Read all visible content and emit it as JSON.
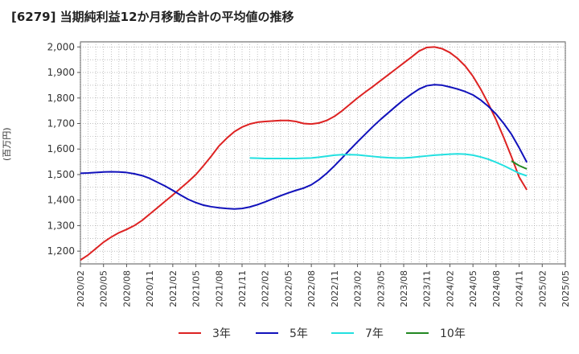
{
  "chart_data": {
    "type": "line",
    "title": "[6279]  当期純利益12か月移動合計の平均値の推移",
    "ylabel": "(百万円)",
    "xlabel": "",
    "ylim": [
      1150,
      2020
    ],
    "yticks": [
      1200,
      1300,
      1400,
      1500,
      1600,
      1700,
      1800,
      1900,
      2000
    ],
    "ytick_labels": [
      "1,200",
      "1,300",
      "1,400",
      "1,500",
      "1,600",
      "1,700",
      "1,800",
      "1,900",
      "2,000"
    ],
    "xticks": [
      "2020/02",
      "2020/05",
      "2020/08",
      "2020/11",
      "2021/02",
      "2021/05",
      "2021/08",
      "2021/11",
      "2022/02",
      "2022/05",
      "2022/08",
      "2022/11",
      "2023/02",
      "2023/05",
      "2023/08",
      "2023/11",
      "2024/02",
      "2024/05",
      "2024/08",
      "2024/11",
      "2025/02",
      "2025/05"
    ],
    "grid": true,
    "legend_position": "bottom",
    "series": [
      {
        "name": "3年",
        "color": "#dd2222",
        "points": [
          [
            "2020/02",
            1165
          ],
          [
            "2020/03",
            1185
          ],
          [
            "2020/04",
            1210
          ],
          [
            "2020/05",
            1235
          ],
          [
            "2020/06",
            1255
          ],
          [
            "2020/07",
            1272
          ],
          [
            "2020/08",
            1285
          ],
          [
            "2020/09",
            1300
          ],
          [
            "2020/10",
            1320
          ],
          [
            "2020/11",
            1345
          ],
          [
            "2020/12",
            1370
          ],
          [
            "2021/01",
            1395
          ],
          [
            "2021/02",
            1420
          ],
          [
            "2021/03",
            1446
          ],
          [
            "2021/04",
            1472
          ],
          [
            "2021/05",
            1500
          ],
          [
            "2021/06",
            1535
          ],
          [
            "2021/07",
            1572
          ],
          [
            "2021/08",
            1612
          ],
          [
            "2021/09",
            1642
          ],
          [
            "2021/10",
            1668
          ],
          [
            "2021/11",
            1686
          ],
          [
            "2021/12",
            1698
          ],
          [
            "2022/01",
            1705
          ],
          [
            "2022/02",
            1708
          ],
          [
            "2022/03",
            1710
          ],
          [
            "2022/04",
            1712
          ],
          [
            "2022/05",
            1712
          ],
          [
            "2022/06",
            1708
          ],
          [
            "2022/07",
            1700
          ],
          [
            "2022/08",
            1698
          ],
          [
            "2022/09",
            1702
          ],
          [
            "2022/10",
            1712
          ],
          [
            "2022/11",
            1728
          ],
          [
            "2022/12",
            1750
          ],
          [
            "2023/01",
            1775
          ],
          [
            "2023/02",
            1800
          ],
          [
            "2023/03",
            1823
          ],
          [
            "2023/04",
            1845
          ],
          [
            "2023/05",
            1868
          ],
          [
            "2023/06",
            1891
          ],
          [
            "2023/07",
            1914
          ],
          [
            "2023/08",
            1937
          ],
          [
            "2023/09",
            1960
          ],
          [
            "2023/10",
            1984
          ],
          [
            "2023/11",
            1998
          ],
          [
            "2023/12",
            2000
          ],
          [
            "2024/01",
            1993
          ],
          [
            "2024/02",
            1978
          ],
          [
            "2024/03",
            1955
          ],
          [
            "2024/04",
            1925
          ],
          [
            "2024/05",
            1885
          ],
          [
            "2024/06",
            1835
          ],
          [
            "2024/07",
            1778
          ],
          [
            "2024/08",
            1715
          ],
          [
            "2024/09",
            1645
          ],
          [
            "2024/10",
            1570
          ],
          [
            "2024/11",
            1490
          ],
          [
            "2024/12",
            1440
          ]
        ]
      },
      {
        "name": "5年",
        "color": "#1111bb",
        "points": [
          [
            "2020/02",
            1505
          ],
          [
            "2020/03",
            1506
          ],
          [
            "2020/04",
            1508
          ],
          [
            "2020/05",
            1510
          ],
          [
            "2020/06",
            1511
          ],
          [
            "2020/07",
            1510
          ],
          [
            "2020/08",
            1508
          ],
          [
            "2020/09",
            1503
          ],
          [
            "2020/10",
            1496
          ],
          [
            "2020/11",
            1485
          ],
          [
            "2020/12",
            1470
          ],
          [
            "2021/01",
            1455
          ],
          [
            "2021/02",
            1438
          ],
          [
            "2021/03",
            1420
          ],
          [
            "2021/04",
            1403
          ],
          [
            "2021/05",
            1390
          ],
          [
            "2021/06",
            1380
          ],
          [
            "2021/07",
            1374
          ],
          [
            "2021/08",
            1370
          ],
          [
            "2021/09",
            1367
          ],
          [
            "2021/10",
            1365
          ],
          [
            "2021/11",
            1367
          ],
          [
            "2021/12",
            1373
          ],
          [
            "2022/01",
            1382
          ],
          [
            "2022/02",
            1393
          ],
          [
            "2022/03",
            1405
          ],
          [
            "2022/04",
            1417
          ],
          [
            "2022/05",
            1428
          ],
          [
            "2022/06",
            1438
          ],
          [
            "2022/07",
            1447
          ],
          [
            "2022/08",
            1460
          ],
          [
            "2022/09",
            1480
          ],
          [
            "2022/10",
            1505
          ],
          [
            "2022/11",
            1534
          ],
          [
            "2022/12",
            1565
          ],
          [
            "2023/01",
            1597
          ],
          [
            "2023/02",
            1628
          ],
          [
            "2023/03",
            1658
          ],
          [
            "2023/04",
            1688
          ],
          [
            "2023/05",
            1716
          ],
          [
            "2023/06",
            1742
          ],
          [
            "2023/07",
            1768
          ],
          [
            "2023/08",
            1793
          ],
          [
            "2023/09",
            1815
          ],
          [
            "2023/10",
            1835
          ],
          [
            "2023/11",
            1848
          ],
          [
            "2023/12",
            1852
          ],
          [
            "2024/01",
            1850
          ],
          [
            "2024/02",
            1843
          ],
          [
            "2024/03",
            1835
          ],
          [
            "2024/04",
            1825
          ],
          [
            "2024/05",
            1812
          ],
          [
            "2024/06",
            1792
          ],
          [
            "2024/07",
            1767
          ],
          [
            "2024/08",
            1737
          ],
          [
            "2024/09",
            1700
          ],
          [
            "2024/10",
            1658
          ],
          [
            "2024/11",
            1605
          ],
          [
            "2024/12",
            1548
          ]
        ]
      },
      {
        "name": "7年",
        "color": "#22e0e0",
        "points": [
          [
            "2021/12",
            1565
          ],
          [
            "2022/01",
            1564
          ],
          [
            "2022/02",
            1563
          ],
          [
            "2022/03",
            1563
          ],
          [
            "2022/04",
            1563
          ],
          [
            "2022/05",
            1563
          ],
          [
            "2022/06",
            1563
          ],
          [
            "2022/07",
            1564
          ],
          [
            "2022/08",
            1565
          ],
          [
            "2022/09",
            1568
          ],
          [
            "2022/10",
            1572
          ],
          [
            "2022/11",
            1576
          ],
          [
            "2022/12",
            1578
          ],
          [
            "2023/01",
            1578
          ],
          [
            "2023/02",
            1577
          ],
          [
            "2023/03",
            1574
          ],
          [
            "2023/04",
            1571
          ],
          [
            "2023/05",
            1568
          ],
          [
            "2023/06",
            1566
          ],
          [
            "2023/07",
            1565
          ],
          [
            "2023/08",
            1565
          ],
          [
            "2023/09",
            1567
          ],
          [
            "2023/10",
            1570
          ],
          [
            "2023/11",
            1573
          ],
          [
            "2023/12",
            1576
          ],
          [
            "2024/01",
            1578
          ],
          [
            "2024/02",
            1580
          ],
          [
            "2024/03",
            1581
          ],
          [
            "2024/04",
            1580
          ],
          [
            "2024/05",
            1576
          ],
          [
            "2024/06",
            1569
          ],
          [
            "2024/07",
            1560
          ],
          [
            "2024/08",
            1548
          ],
          [
            "2024/09",
            1535
          ],
          [
            "2024/10",
            1520
          ],
          [
            "2024/11",
            1505
          ],
          [
            "2024/12",
            1495
          ]
        ]
      },
      {
        "name": "10年",
        "color": "#228822",
        "points": [
          [
            "2024/10",
            1553
          ],
          [
            "2024/11",
            1535
          ],
          [
            "2024/12",
            1522
          ]
        ]
      }
    ]
  }
}
